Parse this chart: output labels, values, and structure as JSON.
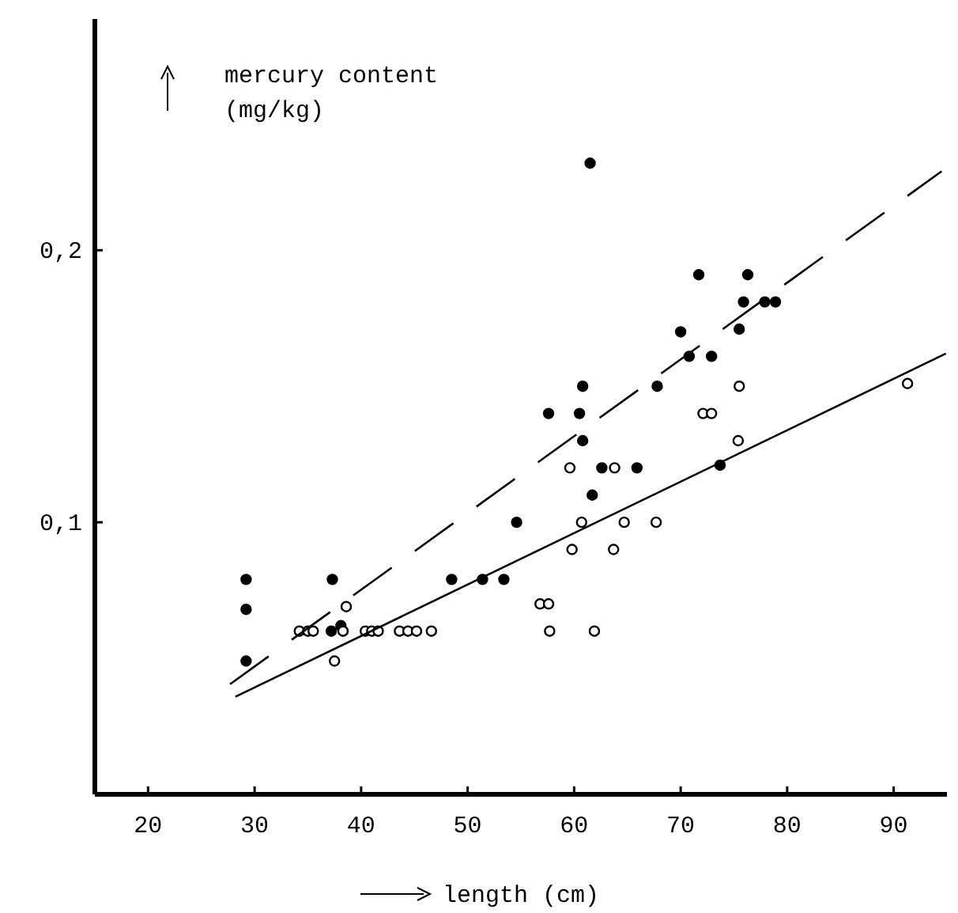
{
  "chart_data": {
    "type": "scatter",
    "xlabel": "length (cm)",
    "ylabel": "mercury content\n(mg/kg)",
    "xlim": [
      15,
      95
    ],
    "ylim": [
      0,
      0.285
    ],
    "xticks": [
      20,
      30,
      40,
      50,
      60,
      70,
      80,
      90
    ],
    "yticks": [
      {
        "value": 0.1,
        "label": "0,1"
      },
      {
        "value": 0.2,
        "label": "0,2"
      }
    ],
    "grid": false,
    "series": [
      {
        "marker": "circle",
        "color": "#000000",
        "x": [
          29.2,
          29.2,
          29.2,
          37.3,
          37.2,
          38.1,
          48.5,
          51.4,
          53.4,
          61.5,
          71.7,
          76.3,
          75.9,
          77.9,
          78.9,
          70.0,
          75.5,
          70.8,
          72.9,
          60.8,
          67.8,
          57.6,
          60.5,
          60.8,
          62.6,
          65.9,
          73.7,
          61.7,
          54.6
        ],
        "values": [
          0.079,
          0.068,
          0.049,
          0.079,
          0.06,
          0.062,
          0.079,
          0.079,
          0.079,
          0.232,
          0.191,
          0.191,
          0.181,
          0.181,
          0.181,
          0.17,
          0.171,
          0.161,
          0.161,
          0.15,
          0.15,
          0.14,
          0.14,
          0.13,
          0.12,
          0.12,
          0.121,
          0.11,
          0.1
        ]
      },
      {
        "marker": "circle",
        "color": "#ffffff",
        "x": [
          34.2,
          35.0,
          35.5,
          38.6,
          37.5,
          38.3,
          40.4,
          41.0,
          41.6,
          43.6,
          44.4,
          45.2,
          46.6,
          59.8,
          63.7,
          56.8,
          57.6,
          57.7,
          61.9,
          75.5,
          72.1,
          72.9,
          75.4,
          59.6,
          63.8,
          60.7,
          64.7,
          67.7,
          91.3
        ],
        "values": [
          0.06,
          0.06,
          0.06,
          0.069,
          0.049,
          0.06,
          0.06,
          0.06,
          0.06,
          0.06,
          0.06,
          0.06,
          0.06,
          0.09,
          0.09,
          0.07,
          0.07,
          0.06,
          0.06,
          0.15,
          0.14,
          0.14,
          0.13,
          0.12,
          0.12,
          0.1,
          0.1,
          0.1,
          0.151
        ]
      },
      {
        "type": "line",
        "line_style": "dashed",
        "marker": "none",
        "color": "#000000",
        "x": [
          27.7,
          94.5
        ],
        "values": [
          0.0405,
          0.229
        ]
      },
      {
        "type": "line",
        "line_style": "solid",
        "marker": "none",
        "color": "#000000",
        "x": [
          28.2,
          94.9
        ],
        "values": [
          0.0359,
          0.162
        ]
      }
    ]
  }
}
